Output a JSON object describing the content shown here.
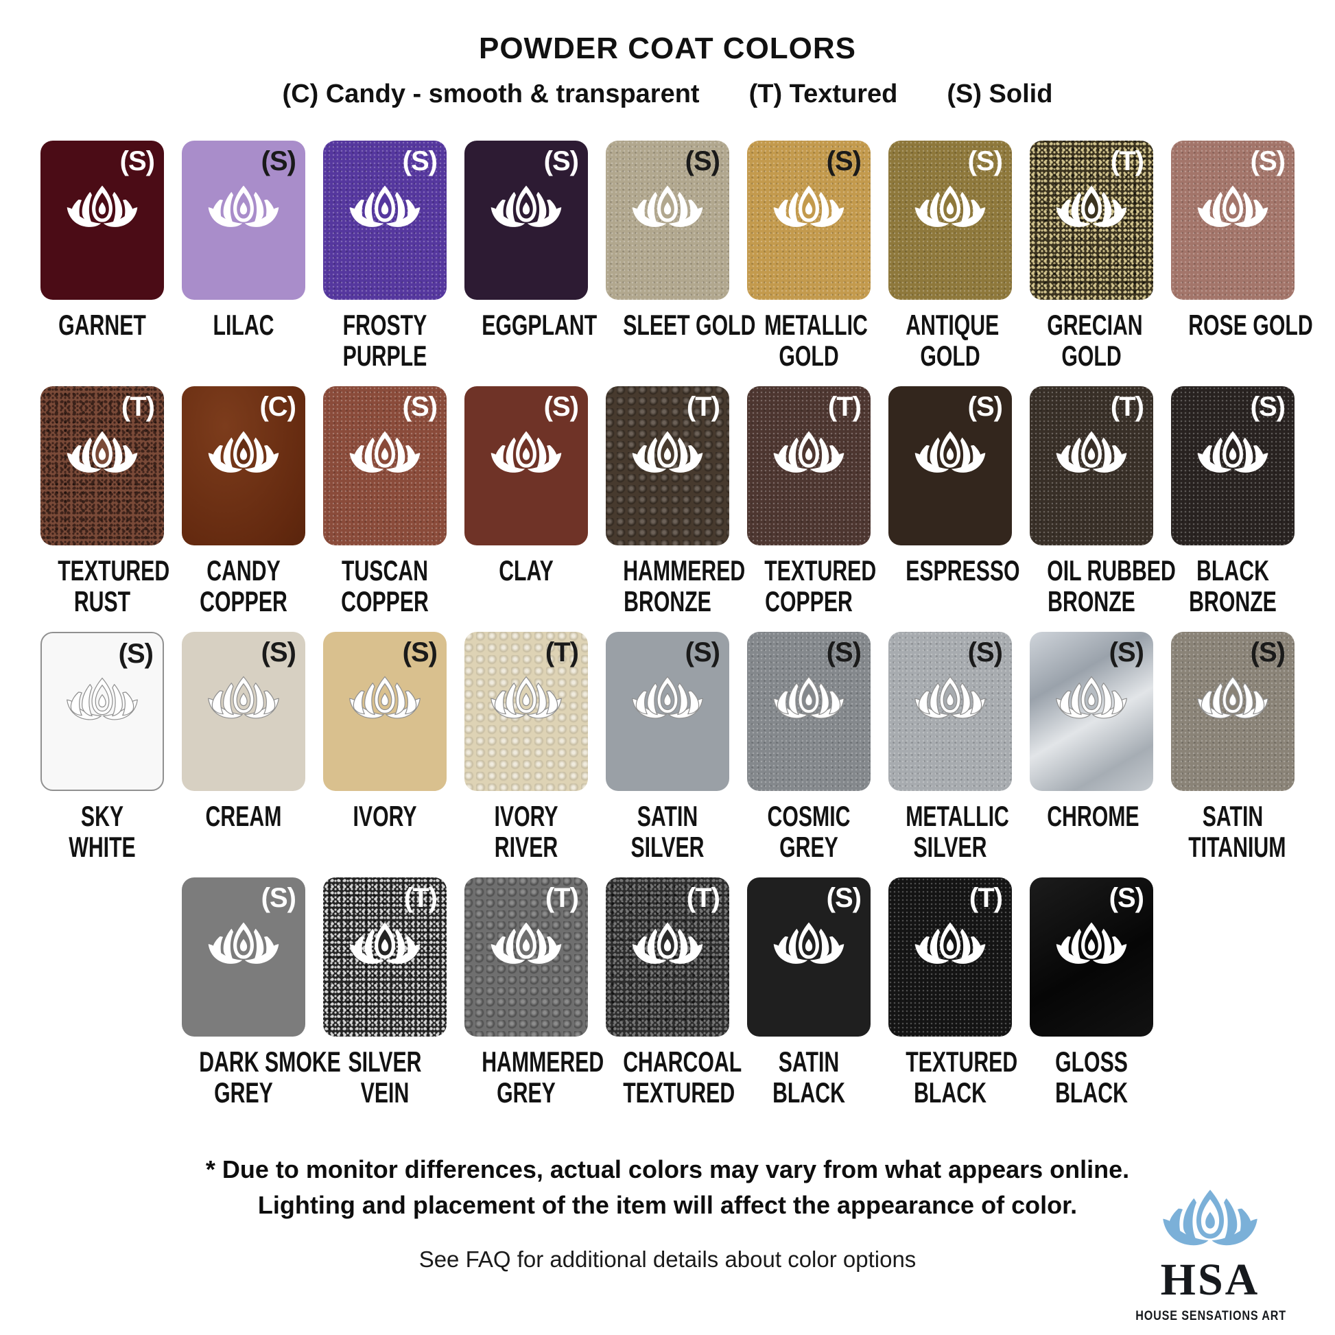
{
  "header": {
    "title": "POWDER COAT COLORS",
    "legend_items": [
      "(C) Candy - smooth & transparent",
      "(T) Textured",
      "(S) Solid"
    ]
  },
  "rows": [
    {
      "swatches": [
        {
          "label_lines": [
            "GARNET"
          ],
          "code": "(S)",
          "bg": "#4b0c16",
          "code_color": "#ffffff",
          "texture": "none",
          "icon": "plain"
        },
        {
          "label_lines": [
            "LILAC"
          ],
          "code": "(S)",
          "bg": "#a98dca",
          "code_color": "#1a1a1a",
          "texture": "none",
          "icon": "plain"
        },
        {
          "label_lines": [
            "FROSTY",
            "PURPLE"
          ],
          "code": "(S)",
          "bg": "#55379e",
          "code_color": "#ffffff",
          "texture": "fine",
          "icon": "plain"
        },
        {
          "label_lines": [
            "EGGPLANT"
          ],
          "code": "(S)",
          "bg": "#2d1b33",
          "code_color": "#ffffff",
          "texture": "none",
          "icon": "plain"
        },
        {
          "label_lines": [
            "SLEET GOLD"
          ],
          "code": "(S)",
          "bg": "#b1a78e",
          "code_color": "#1a1a1a",
          "texture": "fine",
          "icon": "plain"
        },
        {
          "label_lines": [
            "METALLIC",
            "GOLD"
          ],
          "code": "(S)",
          "bg": "#c39a4d",
          "code_color": "#1a1a1a",
          "texture": "fine",
          "icon": "plain"
        },
        {
          "label_lines": [
            "ANTIQUE",
            "GOLD"
          ],
          "code": "(S)",
          "bg": "#8e783b",
          "code_color": "#ffffff",
          "texture": "fine",
          "icon": "plain"
        },
        {
          "label_lines": [
            "GRECIAN",
            "GOLD"
          ],
          "code": "(T)",
          "bg": "#3b331f",
          "fleck": "#d2c48e",
          "code_color": "#ffffff",
          "texture": "coarse",
          "icon": "plain"
        },
        {
          "label_lines": [
            "ROSE GOLD"
          ],
          "code": "(S)",
          "bg": "#a3756a",
          "code_color": "#ffffff",
          "texture": "fine",
          "icon": "plain"
        }
      ]
    },
    {
      "swatches": [
        {
          "label_lines": [
            "TEXTURED",
            "RUST"
          ],
          "code": "(T)",
          "bg": "#7a4a38",
          "fleck": "#3d221a",
          "code_color": "#ffffff",
          "texture": "coarse",
          "icon": "plain"
        },
        {
          "label_lines": [
            "CANDY",
            "COPPER"
          ],
          "code": "(C)",
          "bg": "#652e14",
          "bg_css": "radial-gradient(130% 150% at 35% 25%, #7c3c1c 0%, #63290f 55%, #471c08 100%)",
          "code_color": "#ffffff",
          "texture": "none",
          "icon": "plain"
        },
        {
          "label_lines": [
            "TUSCAN",
            "COPPER"
          ],
          "code": "(S)",
          "bg": "#8a4b3a",
          "code_color": "#ffffff",
          "texture": "fine",
          "icon": "plain"
        },
        {
          "label_lines": [
            "CLAY"
          ],
          "code": "(S)",
          "bg": "#6f3327",
          "code_color": "#ffffff",
          "texture": "none",
          "icon": "plain"
        },
        {
          "label_lines": [
            "HAMMERED",
            "BRONZE"
          ],
          "code": "(T)",
          "bg": "#473a2e",
          "code_color": "#ffffff",
          "texture": "hammered",
          "icon": "plain"
        },
        {
          "label_lines": [
            "TEXTURED",
            "COPPER"
          ],
          "code": "(T)",
          "bg": "#4d3630",
          "code_color": "#ffffff",
          "texture": "fine",
          "icon": "plain"
        },
        {
          "label_lines": [
            "ESPRESSO"
          ],
          "code": "(S)",
          "bg": "#33261d",
          "code_color": "#ffffff",
          "texture": "none",
          "icon": "plain"
        },
        {
          "label_lines": [
            "OIL RUBBED",
            "BRONZE"
          ],
          "code": "(T)",
          "bg": "#382f27",
          "code_color": "#ffffff",
          "texture": "fine",
          "icon": "plain"
        },
        {
          "label_lines": [
            "BLACK",
            "BRONZE"
          ],
          "code": "(S)",
          "bg": "#282220",
          "code_color": "#ffffff",
          "texture": "fine",
          "icon": "plain"
        }
      ]
    },
    {
      "swatches": [
        {
          "label_lines": [
            "SKY",
            "WHITE"
          ],
          "code": "(S)",
          "bg": "#f8f8f8",
          "border": "#909090",
          "code_color": "#1a1a1a",
          "texture": "none",
          "icon": "outlined"
        },
        {
          "label_lines": [
            "CREAM"
          ],
          "code": "(S)",
          "bg": "#d7d0c2",
          "code_color": "#1a1a1a",
          "texture": "none",
          "icon": "outlined"
        },
        {
          "label_lines": [
            "IVORY"
          ],
          "code": "(S)",
          "bg": "#d9c08e",
          "code_color": "#1a1a1a",
          "texture": "none",
          "icon": "outlined"
        },
        {
          "label_lines": [
            "IVORY",
            "RIVER"
          ],
          "code": "(T)",
          "bg": "#ded3b5",
          "code_color": "#1a1a1a",
          "texture": "bumpy",
          "icon": "outlined"
        },
        {
          "label_lines": [
            "SATIN",
            "SILVER"
          ],
          "code": "(S)",
          "bg": "#9aa0a6",
          "code_color": "#1a1a1a",
          "texture": "none",
          "icon": "outlined"
        },
        {
          "label_lines": [
            "COSMIC",
            "GREY"
          ],
          "code": "(S)",
          "bg": "#84888c",
          "code_color": "#1a1a1a",
          "texture": "fine",
          "icon": "outlined"
        },
        {
          "label_lines": [
            "METALLIC",
            "SILVER"
          ],
          "code": "(S)",
          "bg": "#a7abaf",
          "code_color": "#1a1a1a",
          "texture": "fine",
          "icon": "outlined"
        },
        {
          "label_lines": [
            "CHROME"
          ],
          "code": "(S)",
          "bg": "#b6bcc2",
          "bg_css": "linear-gradient(150deg,#cfd4da 0%,#9aa2ab 30%,#e2e5e8 55%,#a6adb4 80%,#c6cbd0 100%)",
          "code_color": "#1a1a1a",
          "texture": "none",
          "icon": "outlined"
        },
        {
          "label_lines": [
            "SATIN",
            "TITANIUM"
          ],
          "code": "(S)",
          "bg": "#8a8377",
          "code_color": "#1a1a1a",
          "texture": "fine",
          "icon": "outlined"
        }
      ]
    },
    {
      "swatches": [
        {
          "label_lines": [
            "DARK SMOKE",
            "GREY"
          ],
          "code": "(S)",
          "bg": "#7c7c7c",
          "code_color": "#ffffff",
          "texture": "none",
          "icon": "plain"
        },
        {
          "label_lines": [
            "SILVER",
            "VEIN"
          ],
          "code": "(T)",
          "bg": "#242424",
          "fleck": "#d6d6d6",
          "code_color": "#ffffff",
          "texture": "coarse",
          "icon": "plain"
        },
        {
          "label_lines": [
            "HAMMERED",
            "GREY"
          ],
          "code": "(T)",
          "bg": "#6f6f6f",
          "code_color": "#ffffff",
          "texture": "hammered",
          "icon": "plain"
        },
        {
          "label_lines": [
            "CHARCOAL",
            "TEXTURED"
          ],
          "code": "(T)",
          "bg": "#2c2c2c",
          "fleck": "#777777",
          "code_color": "#ffffff",
          "texture": "coarse",
          "icon": "plain"
        },
        {
          "label_lines": [
            "SATIN",
            "BLACK"
          ],
          "code": "(S)",
          "bg": "#1f1f1f",
          "code_color": "#ffffff",
          "texture": "none",
          "icon": "plain"
        },
        {
          "label_lines": [
            "TEXTURED",
            "BLACK"
          ],
          "code": "(T)",
          "bg": "#141414",
          "code_color": "#ffffff",
          "texture": "fine",
          "icon": "plain"
        },
        {
          "label_lines": [
            "GLOSS",
            "BLACK"
          ],
          "code": "(S)",
          "bg": "#0b0b0b",
          "bg_css": "linear-gradient(150deg,#1c1c1c 0%,#060606 55%,#121212 100%)",
          "code_color": "#ffffff",
          "texture": "none",
          "icon": "plain"
        }
      ]
    }
  ],
  "footer": {
    "disclaimer_line1": "* Due to monitor differences, actual colors may vary from what appears online.",
    "disclaimer_line2": "Lighting and placement of the item will affect the appearance of color.",
    "faq": "See FAQ for additional details about color options"
  },
  "logo": {
    "monogram": "HSA",
    "name": "HOUSE SENSATIONS ART",
    "lotus_color": "#7bb0d8"
  }
}
